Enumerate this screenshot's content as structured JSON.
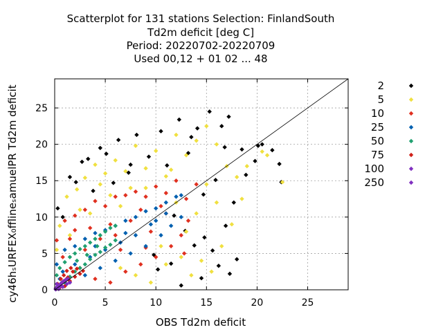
{
  "chart_data": {
    "type": "scatter",
    "title_lines": [
      "Scatterplot for  131 stations Selection: FinlandSouth",
      "Td2m deficit [deg C]",
      "Period: 20220702-20220709",
      "Used  00,12  + 01 02 ... 48"
    ],
    "xlabel": "OBS Td2m deficit",
    "ylabel": "cy46hₛURFEX₀fflineₛamuelPR Td2m deficit",
    "xlim": [
      0,
      29
    ],
    "ylim": [
      0,
      29
    ],
    "xticks": [
      0,
      5,
      10,
      15,
      20,
      25
    ],
    "yticks": [
      0,
      5,
      10,
      15,
      20,
      25
    ],
    "grid": true,
    "diagonal_line": [
      [
        0,
        0
      ],
      [
        29,
        29
      ]
    ],
    "legend_position": "right-outside",
    "series": [
      {
        "name": "2",
        "color": "#000000",
        "points": [
          [
            0.3,
            11.2
          ],
          [
            1.5,
            15.5
          ],
          [
            2.7,
            17.6
          ],
          [
            3.3,
            18.0
          ],
          [
            4.5,
            19.5
          ],
          [
            5.1,
            18.7
          ],
          [
            6.3,
            20.6
          ],
          [
            7.5,
            17.2
          ],
          [
            8.1,
            21.3
          ],
          [
            9.3,
            18.3
          ],
          [
            10.5,
            21.8
          ],
          [
            11.1,
            17.1
          ],
          [
            12.3,
            23.4
          ],
          [
            13.5,
            21.0
          ],
          [
            14.1,
            22.2
          ],
          [
            15.3,
            24.5
          ],
          [
            16.5,
            22.5
          ],
          [
            16.8,
            19.6
          ],
          [
            17.2,
            23.8
          ],
          [
            18.5,
            19.3
          ],
          [
            19.8,
            17.7
          ],
          [
            20.5,
            20.0
          ],
          [
            21.5,
            19.2
          ],
          [
            22.2,
            17.3
          ],
          [
            22.4,
            14.8
          ],
          [
            2.1,
            14.8
          ],
          [
            3.8,
            13.6
          ],
          [
            11.8,
            10.2
          ],
          [
            12.9,
            8.1
          ],
          [
            13.8,
            6.1
          ],
          [
            14.8,
            7.2
          ],
          [
            15.6,
            5.4
          ],
          [
            16.2,
            3.3
          ],
          [
            17.3,
            2.2
          ],
          [
            18.0,
            4.2
          ],
          [
            14.5,
            1.6
          ],
          [
            16.9,
            8.8
          ],
          [
            17.7,
            12.0
          ],
          [
            15.9,
            15.1
          ],
          [
            14.7,
            13.1
          ],
          [
            9.8,
            4.8
          ],
          [
            11.5,
            3.6
          ],
          [
            12.5,
            0.6
          ],
          [
            10.2,
            2.8
          ],
          [
            0.8,
            10.0
          ],
          [
            7.3,
            16.1
          ],
          [
            5.8,
            14.7
          ],
          [
            13.2,
            18.8
          ],
          [
            18.9,
            15.8
          ],
          [
            20.1,
            19.8
          ]
        ]
      },
      {
        "name": "5",
        "color": "#f0e040",
        "points": [
          [
            0.5,
            8.8
          ],
          [
            1.2,
            12.8
          ],
          [
            2.2,
            13.8
          ],
          [
            3.0,
            15.4
          ],
          [
            4.0,
            17.2
          ],
          [
            5.0,
            16.0
          ],
          [
            6.0,
            17.8
          ],
          [
            7.0,
            16.3
          ],
          [
            8.0,
            19.8
          ],
          [
            9.0,
            16.7
          ],
          [
            10.0,
            19.1
          ],
          [
            11.0,
            15.6
          ],
          [
            12.0,
            21.3
          ],
          [
            13.0,
            18.5
          ],
          [
            14.0,
            20.5
          ],
          [
            15.0,
            22.5
          ],
          [
            16.0,
            20.0
          ],
          [
            17.0,
            17.0
          ],
          [
            18.0,
            15.5
          ],
          [
            19.0,
            17.0
          ],
          [
            21.0,
            18.5
          ],
          [
            22.5,
            14.8
          ],
          [
            6.5,
            3.0
          ],
          [
            8.0,
            2.0
          ],
          [
            9.5,
            1.0
          ],
          [
            11.0,
            3.5
          ],
          [
            12.5,
            4.5
          ],
          [
            13.5,
            2.0
          ],
          [
            14.5,
            4.0
          ],
          [
            15.5,
            2.5
          ],
          [
            16.5,
            6.0
          ],
          [
            17.5,
            9.0
          ],
          [
            16.0,
            12.0
          ],
          [
            15.0,
            14.5
          ],
          [
            14.0,
            10.5
          ],
          [
            13.0,
            8.0
          ],
          [
            7.5,
            14.0
          ],
          [
            5.5,
            13.0
          ],
          [
            3.5,
            10.5
          ],
          [
            1.5,
            7.5
          ],
          [
            0.2,
            5.5
          ],
          [
            10.5,
            6.0
          ],
          [
            12.0,
            12.0
          ],
          [
            11.5,
            16.5
          ],
          [
            9.0,
            14.0
          ],
          [
            18.5,
            12.5
          ],
          [
            20.5,
            19.0
          ],
          [
            2.5,
            11.0
          ],
          [
            4.5,
            14.5
          ],
          [
            6.5,
            11.5
          ]
        ]
      },
      {
        "name": "10",
        "color": "#e03020",
        "points": [
          [
            0.2,
            6.8
          ],
          [
            1.0,
            9.5
          ],
          [
            2.0,
            10.2
          ],
          [
            3.0,
            11.0
          ],
          [
            4.0,
            12.2
          ],
          [
            5.0,
            11.5
          ],
          [
            6.0,
            12.8
          ],
          [
            7.0,
            13.0
          ],
          [
            8.0,
            13.5
          ],
          [
            9.0,
            12.8
          ],
          [
            10.0,
            14.2
          ],
          [
            11.0,
            13.3
          ],
          [
            12.0,
            15.0
          ],
          [
            13.0,
            12.5
          ],
          [
            4.0,
            1.5
          ],
          [
            5.5,
            1.0
          ],
          [
            7.0,
            2.5
          ],
          [
            8.5,
            3.5
          ],
          [
            10.0,
            4.5
          ],
          [
            11.5,
            6.0
          ],
          [
            12.5,
            7.5
          ],
          [
            13.2,
            9.5
          ],
          [
            9.5,
            8.0
          ],
          [
            7.5,
            9.5
          ],
          [
            5.5,
            9.0
          ],
          [
            3.5,
            8.5
          ],
          [
            1.5,
            7.0
          ],
          [
            2.5,
            3.0
          ],
          [
            6.5,
            5.5
          ],
          [
            11.0,
            10.5
          ],
          [
            12.8,
            5.0
          ],
          [
            0.8,
            4.5
          ],
          [
            3.0,
            5.5
          ],
          [
            8.5,
            11.0
          ],
          [
            10.5,
            11.5
          ],
          [
            6.0,
            7.5
          ],
          [
            9.0,
            5.8
          ],
          [
            4.5,
            7.0
          ],
          [
            14.0,
            14.5
          ],
          [
            2.0,
            8.2
          ]
        ]
      },
      {
        "name": "25",
        "color": "#0060b0",
        "points": [
          [
            0.2,
            3.5
          ],
          [
            1.0,
            5.5
          ],
          [
            2.0,
            6.0
          ],
          [
            3.0,
            7.0
          ],
          [
            4.0,
            7.8
          ],
          [
            5.0,
            8.2
          ],
          [
            6.0,
            8.8
          ],
          [
            7.0,
            9.5
          ],
          [
            8.0,
            10.0
          ],
          [
            9.0,
            10.8
          ],
          [
            10.0,
            11.2
          ],
          [
            11.0,
            12.0
          ],
          [
            12.0,
            12.8
          ],
          [
            12.5,
            13.0
          ],
          [
            1.5,
            1.0
          ],
          [
            3.0,
            2.0
          ],
          [
            4.5,
            3.0
          ],
          [
            6.0,
            4.0
          ],
          [
            7.5,
            5.0
          ],
          [
            9.0,
            6.0
          ],
          [
            10.5,
            7.5
          ],
          [
            11.5,
            8.8
          ],
          [
            12.5,
            10.0
          ],
          [
            8.0,
            7.5
          ],
          [
            6.5,
            6.5
          ],
          [
            5.0,
            5.5
          ],
          [
            3.5,
            4.5
          ],
          [
            2.0,
            3.5
          ],
          [
            9.5,
            9.0
          ],
          [
            11.0,
            10.5
          ],
          [
            0.5,
            1.5
          ],
          [
            4.0,
            6.0
          ],
          [
            7.0,
            7.8
          ],
          [
            10.0,
            9.5
          ],
          [
            0.8,
            2.5
          ]
        ]
      },
      {
        "name": "50",
        "color": "#20a070",
        "points": [
          [
            0.2,
            2.0
          ],
          [
            0.5,
            3.0
          ],
          [
            1.0,
            3.8
          ],
          [
            1.5,
            4.5
          ],
          [
            2.0,
            5.0
          ],
          [
            2.5,
            5.6
          ],
          [
            3.0,
            6.0
          ],
          [
            3.5,
            6.5
          ],
          [
            4.0,
            7.0
          ],
          [
            4.5,
            7.5
          ],
          [
            5.0,
            8.0
          ],
          [
            5.5,
            8.5
          ],
          [
            6.0,
            8.8
          ],
          [
            1.0,
            1.0
          ],
          [
            1.5,
            1.8
          ],
          [
            2.0,
            2.5
          ],
          [
            2.5,
            3.0
          ],
          [
            3.0,
            3.5
          ],
          [
            3.5,
            4.2
          ],
          [
            4.0,
            4.8
          ],
          [
            4.5,
            5.2
          ],
          [
            5.0,
            5.8
          ],
          [
            5.5,
            6.2
          ],
          [
            6.0,
            6.8
          ],
          [
            0.6,
            0.6
          ],
          [
            2.2,
            4.0
          ],
          [
            3.2,
            4.8
          ],
          [
            4.2,
            6.0
          ]
        ]
      },
      {
        "name": "75",
        "color": "#d02018",
        "points": [
          [
            0.3,
            0.8
          ],
          [
            0.6,
            1.5
          ],
          [
            0.9,
            2.0
          ],
          [
            1.2,
            2.6
          ],
          [
            1.6,
            3.0
          ],
          [
            0.5,
            0.3
          ],
          [
            1.0,
            0.5
          ],
          [
            1.5,
            1.2
          ],
          [
            2.0,
            1.8
          ],
          [
            2.5,
            2.2
          ],
          [
            1.8,
            2.5
          ],
          [
            1.3,
            1.7
          ],
          [
            0.8,
            1.1
          ],
          [
            2.2,
            2.9
          ],
          [
            2.8,
            2.6
          ]
        ]
      },
      {
        "name": "100",
        "color": "#8030c0",
        "points": [
          [
            0.1,
            0.2
          ],
          [
            0.3,
            0.5
          ],
          [
            0.5,
            0.7
          ],
          [
            0.7,
            1.0
          ],
          [
            0.9,
            1.2
          ],
          [
            1.1,
            1.4
          ],
          [
            1.3,
            1.5
          ],
          [
            0.4,
            0.1
          ],
          [
            0.8,
            0.4
          ],
          [
            1.2,
            0.8
          ],
          [
            1.5,
            1.0
          ],
          [
            0.2,
            0.8
          ]
        ]
      },
      {
        "name": "250",
        "color": "#8030c0",
        "points": [
          [
            0.1,
            0.05
          ],
          [
            0.2,
            0.15
          ],
          [
            0.3,
            0.25
          ],
          [
            0.4,
            0.35
          ],
          [
            0.5,
            0.45
          ],
          [
            0.6,
            0.55
          ]
        ]
      }
    ]
  }
}
